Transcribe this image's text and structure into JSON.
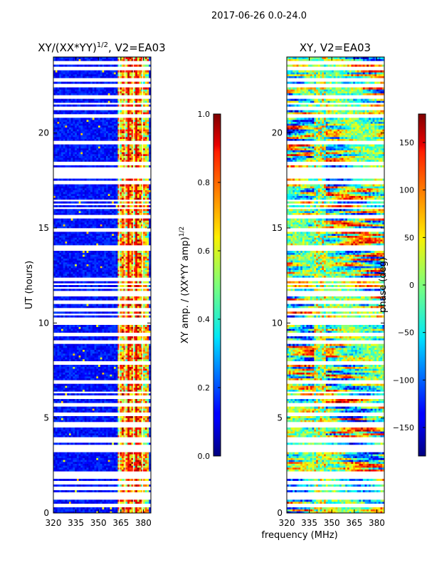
{
  "figure": {
    "suptitle": "2017-06-26 0.0-24.0",
    "xlabel_shared": "frequency (MHz)"
  },
  "chart_data": [
    {
      "type": "heatmap",
      "title": "XY/(XX*YY)",
      "title_superscript": "1/2",
      "title_suffix": ", V2=EA03",
      "xlabel": "",
      "ylabel": "UT (hours)",
      "xlim": [
        320,
        385
      ],
      "ylim": [
        0,
        24
      ],
      "xticks": [
        320,
        335,
        350,
        365,
        380
      ],
      "yticks": [
        0,
        5,
        10,
        15,
        20
      ],
      "colorbar": {
        "label": "XY amp. / (XX*YY amp)",
        "label_superscript": "1/2",
        "range": [
          0.0,
          1.0
        ],
        "ticks": [
          "0.0",
          "0.2",
          "0.4",
          "0.6",
          "0.8",
          "1.0"
        ],
        "colormap": "jet"
      },
      "description": "Normalized cross-correlation amplitude vs frequency and UT; low background with enhanced band near 362-383 MHz; horizontal white gaps indicate missing data"
    },
    {
      "type": "heatmap",
      "title": "XY, V2=EA03",
      "xlabel": "",
      "ylabel": "",
      "xlim": [
        320,
        385
      ],
      "ylim": [
        0,
        24
      ],
      "xticks": [
        320,
        335,
        350,
        365,
        380
      ],
      "yticks": [
        0,
        5,
        10,
        15,
        20
      ],
      "colorbar": {
        "label": "phase (deg)",
        "range": [
          -180,
          180
        ],
        "ticks": [
          "−150",
          "−100",
          "−50",
          "0",
          "50",
          "100",
          "150"
        ],
        "colormap": "jet"
      },
      "description": "XY phase vs frequency and UT; phase wraps across full range with varying structure"
    }
  ]
}
